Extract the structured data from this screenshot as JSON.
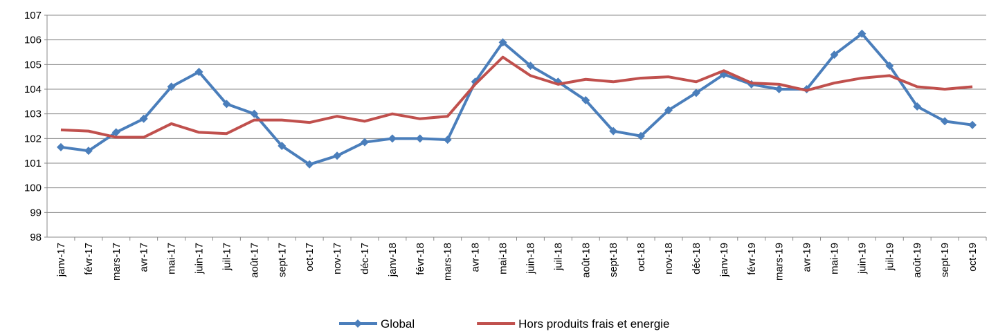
{
  "chart_data": {
    "type": "line",
    "categories": [
      "janv-17",
      "févr-17",
      "mars-17",
      "avr-17",
      "mai-17",
      "juin-17",
      "juil-17",
      "août-17",
      "sept-17",
      "oct-17",
      "nov-17",
      "déc-17",
      "janv-18",
      "févr-18",
      "mars-18",
      "avr-18",
      "mai-18",
      "juin-18",
      "juil-18",
      "août-18",
      "sept-18",
      "oct-18",
      "nov-18",
      "déc-18",
      "janv-19",
      "févr-19",
      "mars-19",
      "avr-19",
      "mai-19",
      "juin-19",
      "juil-19",
      "août-19",
      "sept-19",
      "oct-19"
    ],
    "series": [
      {
        "name": "Global",
        "color": "#4a7ebb",
        "marker": "diamond",
        "values": [
          101.65,
          101.5,
          102.25,
          102.8,
          104.1,
          104.7,
          103.4,
          103.0,
          101.7,
          100.95,
          101.3,
          101.85,
          102.0,
          102.0,
          101.95,
          104.3,
          105.9,
          104.95,
          104.3,
          103.55,
          102.3,
          102.1,
          103.15,
          103.85,
          104.6,
          104.2,
          104.0,
          104.0,
          105.4,
          106.25,
          104.95,
          103.3,
          102.7,
          102.55
        ]
      },
      {
        "name": "Hors produits frais et energie",
        "color": "#c0504d",
        "values": [
          102.35,
          102.3,
          102.05,
          102.05,
          102.6,
          102.25,
          102.2,
          102.75,
          102.75,
          102.65,
          102.9,
          102.7,
          103.0,
          102.8,
          102.9,
          104.2,
          105.3,
          104.55,
          104.2,
          104.4,
          104.3,
          104.45,
          104.5,
          104.3,
          104.75,
          104.25,
          104.2,
          103.95,
          104.25,
          104.45,
          104.55,
          104.1,
          104.0,
          104.1
        ]
      }
    ],
    "ylim": [
      98,
      107
    ],
    "yticks": [
      98,
      99,
      100,
      101,
      102,
      103,
      104,
      105,
      106,
      107
    ],
    "grid": true,
    "legend": "bottom"
  }
}
